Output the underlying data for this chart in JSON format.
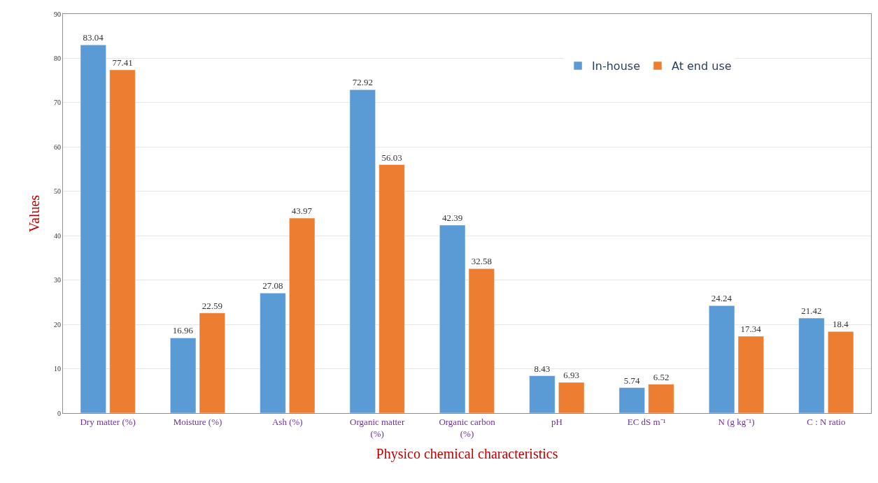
{
  "chart_data": {
    "type": "bar",
    "xlabel": "Physico chemical characteristics",
    "ylabel": "Values",
    "categories": [
      "Dry matter (%)",
      "Moisture (%)",
      "Ash (%)",
      "Organic matter (%)",
      "Organic carbon (%)",
      "pH",
      "EC dS m⁻¹",
      "N (g kg⁻¹)",
      "C : N ratio"
    ],
    "series": [
      {
        "name": "In-house",
        "color": "#5b9bd5",
        "values": [
          83.04,
          16.96,
          27.08,
          72.92,
          42.39,
          8.43,
          5.74,
          24.24,
          21.42
        ]
      },
      {
        "name": "At end use",
        "color": "#ed7d31",
        "values": [
          77.41,
          22.59,
          43.97,
          56.03,
          32.58,
          6.93,
          6.52,
          17.34,
          18.4
        ]
      }
    ],
    "ylim": [
      0,
      90
    ],
    "yticks": [
      0,
      10,
      20,
      30,
      40,
      50,
      60,
      70,
      80,
      90
    ],
    "grid": "y",
    "legend": "top right",
    "data_labels": true
  }
}
